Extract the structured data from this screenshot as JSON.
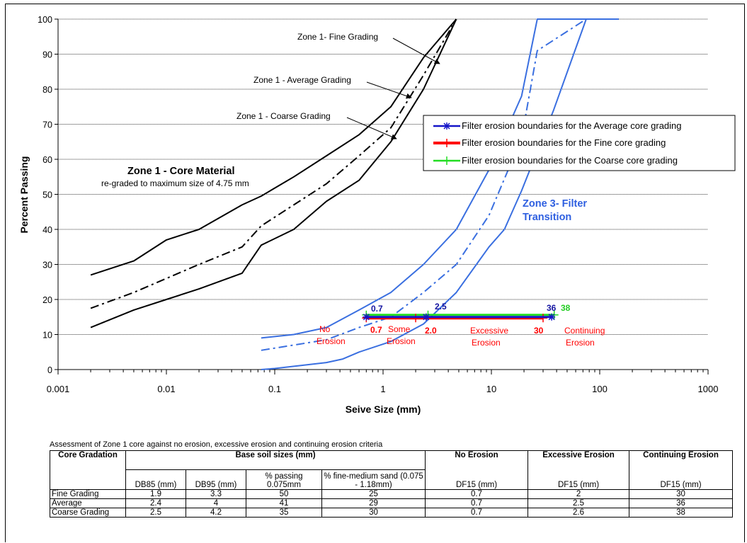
{
  "chart_data": {
    "type": "line",
    "xscale": "log",
    "xlim": [
      0.001,
      1000
    ],
    "ylim": [
      0,
      100
    ],
    "xlabel": "Seive Size (mm)",
    "ylabel": "Percent Passing",
    "x_ticks": [
      "0.001",
      "0.01",
      "0.1",
      "1",
      "10",
      "100",
      "1000"
    ],
    "y_ticks": [
      "0",
      "10",
      "20",
      "30",
      "40",
      "50",
      "60",
      "70",
      "80",
      "90",
      "100"
    ],
    "grid": "horizontal",
    "legend_position": "right",
    "series": [
      {
        "key": "z1_fine",
        "style": "solid",
        "color": "#000000",
        "x": [
          0.002,
          0.005,
          0.01,
          0.02,
          0.05,
          0.075,
          0.15,
          0.3,
          0.6,
          1.18,
          2.36,
          4.75
        ],
        "y": [
          27,
          31,
          37,
          40,
          47,
          49.5,
          55,
          61,
          67,
          75,
          89,
          100
        ]
      },
      {
        "key": "z1_avg",
        "style": "dashdot",
        "color": "#000000",
        "x": [
          0.002,
          0.005,
          0.01,
          0.02,
          0.05,
          0.075,
          0.15,
          0.3,
          0.6,
          1.18,
          2.36,
          4.75
        ],
        "y": [
          17.5,
          22,
          26,
          30,
          35,
          41,
          47,
          53,
          61,
          69,
          84,
          100
        ]
      },
      {
        "key": "z1_coarse",
        "style": "solid",
        "color": "#000000",
        "x": [
          0.002,
          0.005,
          0.01,
          0.02,
          0.05,
          0.075,
          0.15,
          0.3,
          0.6,
          1.18,
          2.36,
          4.75
        ],
        "y": [
          12,
          17,
          20,
          23,
          27.5,
          35.5,
          40,
          48,
          54,
          65,
          80,
          100
        ]
      },
      {
        "key": "z3_fine",
        "style": "solid",
        "color": "#3a6fe0",
        "x": [
          0.075,
          0.15,
          0.3,
          0.6,
          1.18,
          2.36,
          4.75,
          9.5,
          19,
          26.5,
          75
        ],
        "y": [
          9,
          10,
          12,
          17,
          22,
          30,
          40,
          57,
          78,
          100,
          100
        ]
      },
      {
        "key": "z3_avg",
        "style": "dashdot",
        "color": "#3a6fe0",
        "x": [
          0.075,
          0.15,
          0.3,
          0.6,
          1.18,
          2.36,
          4.75,
          9.5,
          19,
          26.5,
          75
        ],
        "y": [
          5.5,
          7,
          8.5,
          12,
          15,
          22,
          30,
          44,
          66,
          91,
          100
        ]
      },
      {
        "key": "z3_coarse",
        "style": "solid",
        "color": "#3a6fe0",
        "x": [
          0.075,
          0.1,
          0.3,
          0.425,
          0.6,
          1.18,
          2.36,
          4.75,
          9.5,
          13.2,
          19,
          37.5,
          75,
          150
        ],
        "y": [
          0,
          0.3,
          2,
          3,
          5,
          8,
          13,
          22,
          35,
          40,
          51,
          74,
          100,
          100
        ]
      }
    ],
    "legend": [
      {
        "label": "Filter erosion boundaries for the Average core grading",
        "color": "#1414c8"
      },
      {
        "label": "Filter erosion boundaries for the Fine core grading",
        "color": "#ff0000"
      },
      {
        "label": "Filter erosion boundaries for the Coarse core grading",
        "color": "#22dd22"
      }
    ],
    "boundaries": [
      {
        "key": "average",
        "color": "#1414c8",
        "y": 15.0,
        "x": [
          0.7,
          2.5,
          36
        ]
      },
      {
        "key": "fine",
        "color": "#ff0000",
        "y": 14.7,
        "x": [
          0.7,
          2.0,
          30
        ]
      },
      {
        "key": "coarse",
        "color": "#22dd22",
        "y": 15.6,
        "x": [
          0.7,
          2.6,
          38
        ]
      }
    ],
    "annotations": {
      "core_title": "Zone 1 - Core Material",
      "core_subtitle": "re-graded to maximum size of 4.75 mm",
      "z1_fine_label": "Zone 1- Fine Grading",
      "z1_avg_label": "Zone 1 - Average Grading",
      "z1_coarse_label": "Zone 1 - Coarse Grading",
      "zone3_line1": "Zone 3- Filter",
      "zone3_line2": "Transition",
      "no_erosion_1": "No",
      "no_erosion_2": "Erosion",
      "some_erosion_1": "Some",
      "some_erosion_2": "Erosion",
      "excessive_1": "Excessive",
      "excessive_2": "Erosion",
      "continuing_1": "Continuing",
      "continuing_2": "Erosion",
      "val_avg_no": "0.7",
      "val_avg_exc": "2.5",
      "val_avg_cont": "36",
      "val_fine_no": "0.7",
      "val_fine_exc": "2.0",
      "val_fine_cont": "30",
      "val_coarse_cont": "38"
    }
  },
  "table": {
    "caption": "Assessment of Zone 1 core against no erosion, excessive erosion and continuing erosion criteria",
    "h_core": "Core Gradation",
    "h_base": "Base soil sizes (mm)",
    "h_no": "No Erosion",
    "h_exc": "Excessive Erosion",
    "h_cont": "Continuing Erosion",
    "sub": [
      "DB85 (mm)",
      "DB95 (mm)",
      "% passing 0.075mm",
      "% fine-medium sand (0.075 - 1.18mm)",
      "DF15 (mm)",
      "DF15 (mm)",
      "DF15 (mm)"
    ],
    "rows": [
      [
        "Fine Grading",
        "1.9",
        "3.3",
        "50",
        "25",
        "0.7",
        "2",
        "30"
      ],
      [
        "Average",
        "2.4",
        "4",
        "41",
        "29",
        "0.7",
        "2.5",
        "36"
      ],
      [
        "Coarse Grading",
        "2.5",
        "4.2",
        "35",
        "30",
        "0.7",
        "2.6",
        "38"
      ]
    ]
  }
}
